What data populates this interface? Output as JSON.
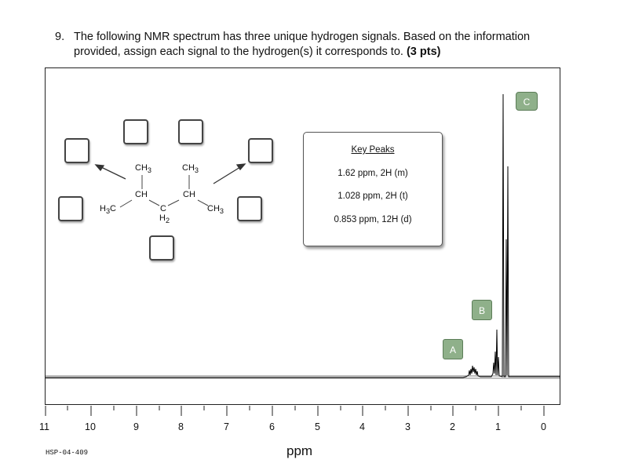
{
  "question": {
    "number": "9.",
    "text_line1": "The following NMR spectrum has three unique hydrogen signals. Based on the information",
    "text_line2": "provided, assign each signal to the hydrogen(s) it corresponds to.",
    "points": "(3 pts)"
  },
  "molecule": {
    "ch3_top_left": "CH3",
    "ch3_top_right": "CH3",
    "ch_left": "CH",
    "ch_right": "CH",
    "h3c_left": "H3C",
    "ch3_right": "CH3",
    "c_center": "C",
    "h2_center": "H2"
  },
  "key_peaks": {
    "title": "Key Peaks",
    "rows": [
      "1.62 ppm, 2H (m)",
      "1.028 ppm, 2H (t)",
      "0.853 ppm, 12H (d)"
    ]
  },
  "peak_labels": {
    "A": "A",
    "B": "B",
    "C": "C"
  },
  "axis": {
    "ticks": [
      "11",
      "10",
      "9",
      "8",
      "7",
      "6",
      "5",
      "4",
      "3",
      "2",
      "1",
      "0"
    ],
    "unit": "ppm"
  },
  "spectrum_code": "HSP-04-409"
}
